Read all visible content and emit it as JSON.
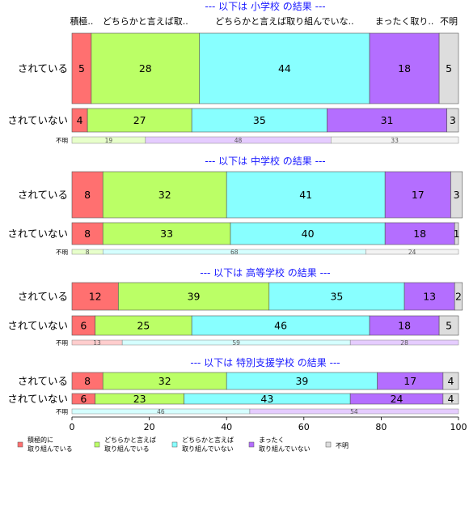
{
  "chart_data": {
    "type": "bar",
    "orientation": "horizontal",
    "stacked": true,
    "percent": true,
    "xlim": [
      0,
      100
    ],
    "xticks": [
      0,
      20,
      40,
      60,
      80,
      100
    ],
    "column_headers": [
      "積極..",
      "どちらかと言えば取..",
      "どちらかと言えば取り組んでいな..",
      "まったく取り..",
      "不明"
    ],
    "colors": [
      "#ff7070",
      "#bbff66",
      "#88ffff",
      "#b46eff",
      "#dddddd"
    ],
    "legend": [
      "積極的に\n取り組んでいる",
      "どちらかと言えば\n取り組んでいる",
      "どちらかと言えば\n取り組んでいない",
      "まったく\n取り組んでいない",
      "不明"
    ],
    "legend_placement": "bottom",
    "sections": [
      {
        "title": "--- 以下は 小学校 の結果 ---",
        "rows": [
          {
            "label": "されている",
            "values": [
              5,
              28,
              44,
              18,
              5
            ]
          },
          {
            "label": "されていない",
            "values": [
              4,
              27,
              35,
              31,
              3
            ]
          }
        ],
        "unknown_bar": {
          "label": "不明",
          "values": [
            19,
            48,
            33
          ]
        }
      },
      {
        "title": "--- 以下は 中学校 の結果 ---",
        "rows": [
          {
            "label": "されている",
            "values": [
              8,
              32,
              41,
              17,
              3
            ]
          },
          {
            "label": "されていない",
            "values": [
              8,
              33,
              40,
              18,
              1
            ]
          }
        ],
        "unknown_bar": {
          "label": "不明",
          "values": [
            8,
            68,
            24
          ]
        }
      },
      {
        "title": "--- 以下は 高等学校 の結果 ---",
        "rows": [
          {
            "label": "されている",
            "values": [
              12,
              39,
              35,
              13,
              2
            ]
          },
          {
            "label": "されていない",
            "values": [
              6,
              25,
              46,
              18,
              5
            ]
          }
        ],
        "unknown_bar": {
          "label": "不明",
          "values": [
            13,
            59,
            28
          ]
        }
      },
      {
        "title": "--- 以下は 特別支援学校 の結果 ---",
        "rows": [
          {
            "label": "されている",
            "values": [
              8,
              32,
              39,
              17,
              4
            ]
          },
          {
            "label": "されていない",
            "values": [
              6,
              23,
              43,
              24,
              4
            ]
          }
        ],
        "unknown_bar": {
          "label": "不明",
          "values": [
            46,
            54
          ]
        }
      }
    ]
  }
}
